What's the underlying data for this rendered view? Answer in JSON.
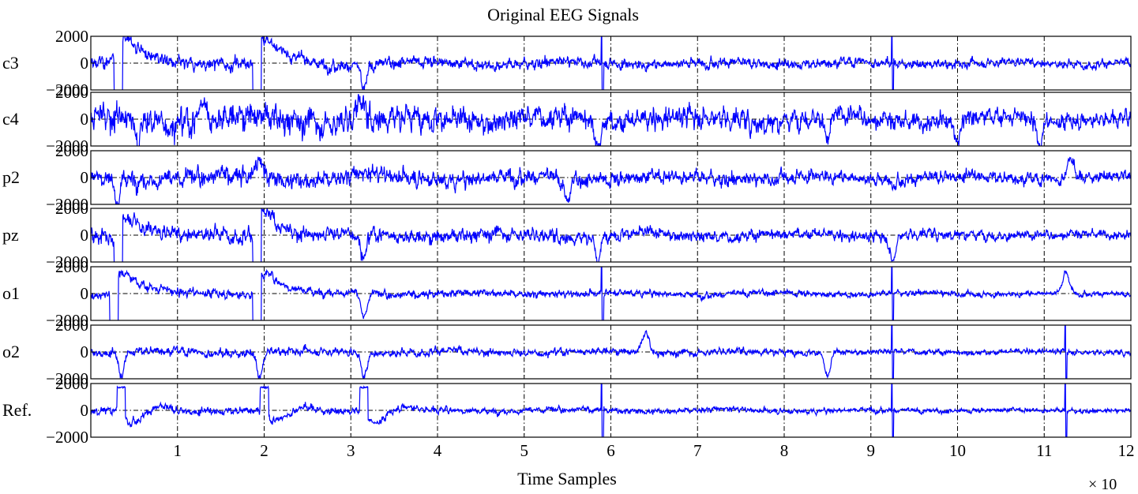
{
  "chart_data": {
    "type": "line",
    "title": "Original EEG Signals",
    "xlabel": "Time Samples",
    "x_multiplier_label": "× 10",
    "xlim": [
      0,
      12
    ],
    "xticks": [
      1,
      2,
      3,
      4,
      5,
      6,
      7,
      8,
      9,
      10,
      11,
      12
    ],
    "xtick_labels": [
      "1",
      "2",
      "3",
      "4",
      "5",
      "6",
      "7",
      "8",
      "9",
      "10",
      "11",
      "12"
    ],
    "ylim": [
      -2000,
      2000
    ],
    "yticks": [
      2000,
      0,
      -2000
    ],
    "ytick_labels": [
      "2000",
      "0",
      "−2000"
    ],
    "grid": true,
    "line_color": "#0000ff",
    "series": [
      {
        "name": "c3",
        "amplitude": 450,
        "artifacts": [
          [
            0.35,
            "rail"
          ],
          [
            1.95,
            "rail"
          ],
          [
            3.15,
            "down"
          ],
          [
            5.9,
            "spike"
          ],
          [
            9.25,
            "spike"
          ]
        ]
      },
      {
        "name": "c4",
        "amplitude": 900,
        "artifacts": [
          [
            0.55,
            "down"
          ],
          [
            1.3,
            "up"
          ],
          [
            3.1,
            "up"
          ],
          [
            5.85,
            "down"
          ],
          [
            8.5,
            "down"
          ],
          [
            10.0,
            "down"
          ],
          [
            10.95,
            "down"
          ]
        ]
      },
      {
        "name": "p2",
        "amplitude": 650,
        "artifacts": [
          [
            0.3,
            "down"
          ],
          [
            1.95,
            "up"
          ],
          [
            5.5,
            "down"
          ],
          [
            11.3,
            "up"
          ]
        ]
      },
      {
        "name": "pz",
        "amplitude": 500,
        "artifacts": [
          [
            0.35,
            "rail"
          ],
          [
            1.95,
            "rail"
          ],
          [
            3.15,
            "down"
          ],
          [
            5.85,
            "down"
          ],
          [
            9.25,
            "down"
          ]
        ]
      },
      {
        "name": "o1",
        "amplitude": 300,
        "artifacts": [
          [
            0.3,
            "rail"
          ],
          [
            1.95,
            "rail"
          ],
          [
            3.15,
            "down"
          ],
          [
            5.9,
            "spike"
          ],
          [
            9.25,
            "spike"
          ],
          [
            11.25,
            "up"
          ]
        ]
      },
      {
        "name": "o2",
        "amplitude": 280,
        "artifacts": [
          [
            0.35,
            "down"
          ],
          [
            1.95,
            "down"
          ],
          [
            3.15,
            "down"
          ],
          [
            6.4,
            "up"
          ],
          [
            8.5,
            "down"
          ],
          [
            9.25,
            "spike"
          ],
          [
            11.25,
            "spike"
          ]
        ]
      },
      {
        "name": "Ref.",
        "amplitude": 260,
        "artifacts": [
          [
            0.3,
            "plateau"
          ],
          [
            1.95,
            "plateau"
          ],
          [
            3.1,
            "plateau"
          ],
          [
            5.9,
            "spike"
          ],
          [
            9.25,
            "spike"
          ],
          [
            11.25,
            "spike"
          ]
        ]
      }
    ]
  }
}
